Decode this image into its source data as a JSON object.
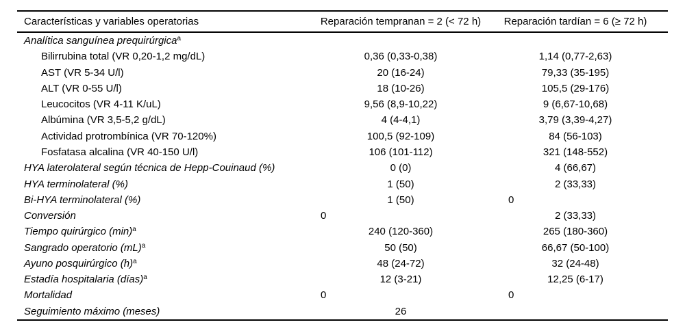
{
  "table": {
    "header": {
      "col1": "Características y variables operatorias",
      "col2": "Reparación tempranan = 2 (< 72 h)",
      "col3": "Reparación tardían = 6 (≥ 72 h)"
    },
    "rows": [
      {
        "label": "Analítica sanguínea prequirúrgica",
        "sup": "a",
        "early": "",
        "late": ""
      },
      {
        "label": "Bilirrubina total (VR 0,20-1,2 mg/dL)",
        "sup": "",
        "early": "0,36 (0,33-0,38)",
        "late": "1,14 (0,77-2,63)"
      },
      {
        "label": "AST (VR 5-34 U/l)",
        "sup": "",
        "early": "20 (16-24)",
        "late": "79,33 (35-195)"
      },
      {
        "label": "ALT (VR 0-55 U/l)",
        "sup": "",
        "early": "18 (10-26)",
        "late": "105,5 (29-176)"
      },
      {
        "label": "Leucocitos (VR 4-11 K/uL)",
        "sup": "",
        "early": "9,56 (8,9-10,22)",
        "late": "9 (6,67-10,68)"
      },
      {
        "label": "Albúmina (VR 3,5-5,2 g/dL)",
        "sup": "",
        "early": "4 (4-4,1)",
        "late": "3,79 (3,39-4,27)"
      },
      {
        "label": "Actividad protrombínica (VR 70-120%)",
        "sup": "",
        "early": "100,5 (92-109)",
        "late": "84 (56-103)"
      },
      {
        "label": "Fosfatasa alcalina (VR 40-150 U/l)",
        "sup": "",
        "early": "106 (101-112)",
        "late": "321 (148-552)"
      },
      {
        "label": "HYA laterolateral según técnica de Hepp-Couinaud (%)",
        "sup": "",
        "early": "0 (0)",
        "late": "4 (66,67)"
      },
      {
        "label": "HYA terminolateral (%)",
        "sup": "",
        "early": "1 (50)",
        "late": "2 (33,33)"
      },
      {
        "label": "Bi-HYA terminolateral (%)",
        "sup": "",
        "early": "1 (50)",
        "late": "0"
      },
      {
        "label": "Conversión",
        "sup": "",
        "early": "0",
        "late": "2 (33,33)"
      },
      {
        "label": "Tiempo quirúrgico (min)",
        "sup": "a",
        "early": "240 (120-360)",
        "late": "265 (180-360)"
      },
      {
        "label": "Sangrado operatorio (mL)",
        "sup": "a",
        "early": "50 (50)",
        "late": "66,67 (50-100)"
      },
      {
        "label": "Ayuno posquirúrgico (h)",
        "sup": "a",
        "early": "48 (24-72)",
        "late": "32 (24-48)"
      },
      {
        "label": "Estadía hospitalaria (días)",
        "sup": "a",
        "early": "12 (3-21)",
        "late": "12,25 (6-17)"
      },
      {
        "label": "Mortalidad",
        "sup": "",
        "early": "0",
        "late": "0"
      },
      {
        "label": "Seguimiento máximo (meses)",
        "sup": "",
        "early": "26",
        "late": ""
      }
    ]
  }
}
